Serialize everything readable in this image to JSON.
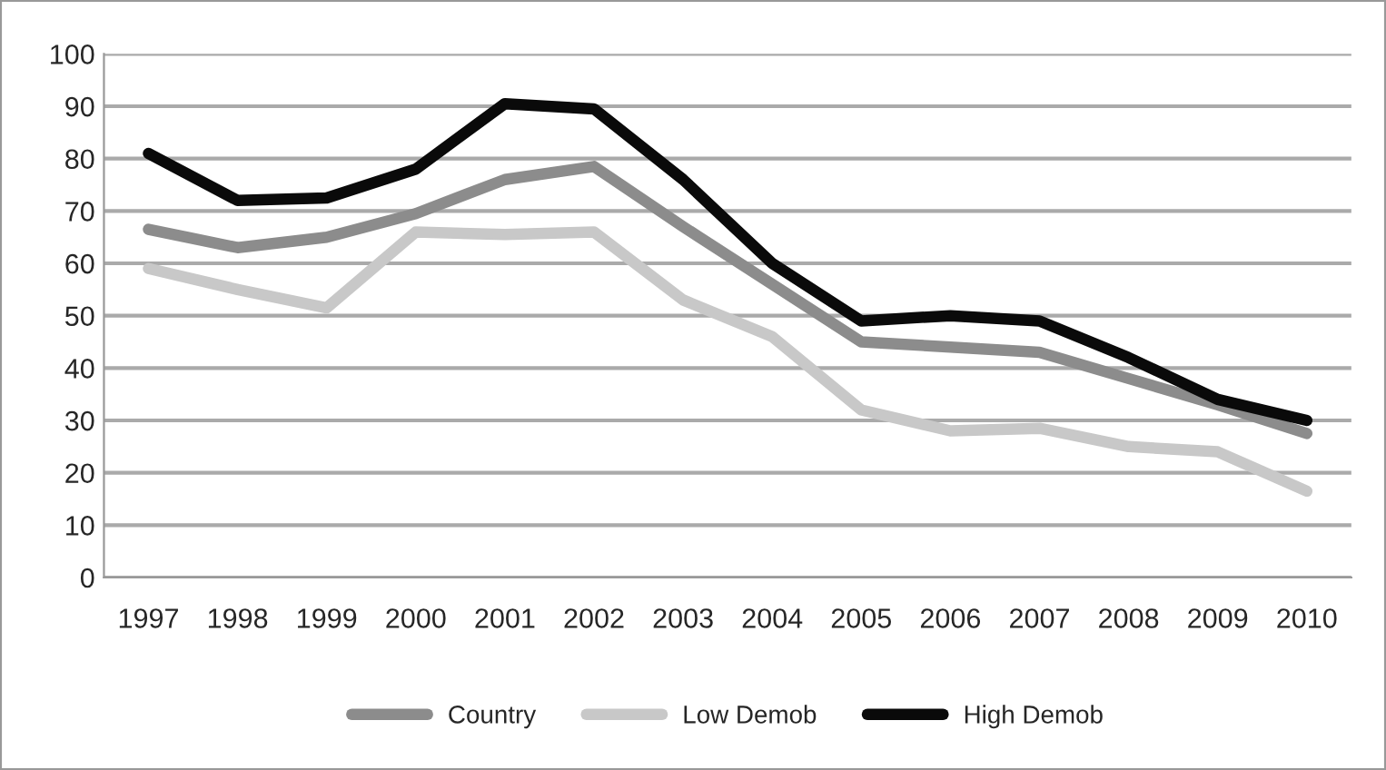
{
  "chart_data": {
    "type": "line",
    "categories": [
      "1997",
      "1998",
      "1999",
      "2000",
      "2001",
      "2002",
      "2003",
      "2004",
      "2005",
      "2006",
      "2007",
      "2008",
      "2009",
      "2010"
    ],
    "series": [
      {
        "name": "Country",
        "color": "#8c8c8c",
        "values": [
          66.5,
          63,
          65,
          69.5,
          76,
          78.5,
          67,
          56,
          45,
          44,
          43,
          38,
          33,
          27.5
        ]
      },
      {
        "name": "Low Demob",
        "color": "#c8c8c8",
        "values": [
          59,
          55,
          51.5,
          66,
          65.5,
          66,
          53,
          46,
          32,
          28,
          28.5,
          25,
          24,
          16.5
        ]
      },
      {
        "name": "High Demob",
        "color": "#0a0a0a",
        "values": [
          81,
          72,
          72.5,
          78,
          90.5,
          89.5,
          76,
          60,
          49,
          50,
          49,
          42,
          34,
          30
        ]
      }
    ],
    "ylim": [
      0,
      100
    ],
    "yticks": [
      0,
      10,
      20,
      30,
      40,
      50,
      60,
      70,
      80,
      90,
      100
    ],
    "grid": "y",
    "legend": "bottom",
    "marker": "none",
    "line_style": "solid"
  }
}
